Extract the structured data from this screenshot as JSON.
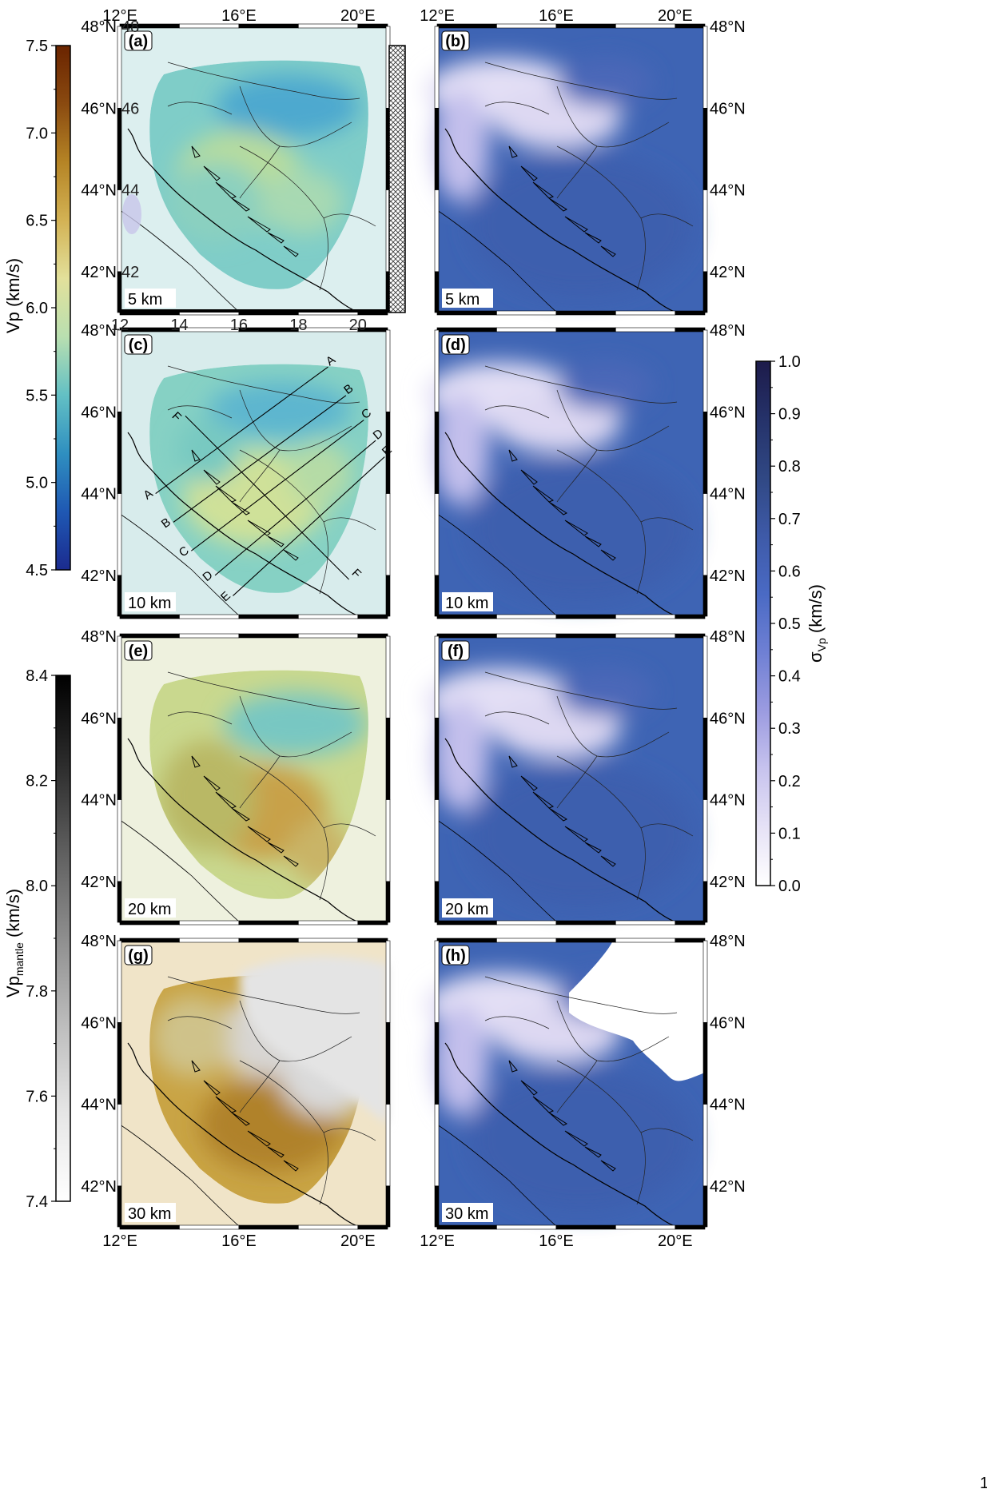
{
  "colors": {
    "vp_ramp": [
      "#1b2b8f",
      "#1f58b3",
      "#2f8fc0",
      "#63c0c4",
      "#b9dfb0",
      "#e2e09b",
      "#d3b254",
      "#b58425",
      "#8a4a10",
      "#6a2400"
    ],
    "sigma_ramp": [
      "#ffffff",
      "#e6e2f6",
      "#c7c3ee",
      "#9b9be0",
      "#6f80d4",
      "#4a6ac4",
      "#3e5aa8",
      "#304884",
      "#25326a",
      "#1d1b4a"
    ],
    "mantle_ramp": [
      "#ffffff",
      "#e6e6e6",
      "#bdbdbd",
      "#8e8e8e",
      "#5e5e5e",
      "#2b2b2b",
      "#000000"
    ],
    "coast": "#000000",
    "border": "#333333",
    "background_sigma": "#3e64b4"
  },
  "colorbars": {
    "vp": {
      "label": "Vp (km/s)",
      "ticks": [
        "7.5",
        "7.0",
        "6.5",
        "6.0",
        "5.5",
        "5.0",
        "4.5"
      ],
      "min": 4.5,
      "max": 7.5
    },
    "sigma": {
      "label_main": "σ",
      "label_sub": "Vp",
      "label_tail": " (km/s)",
      "ticks": [
        "1.0",
        "0.9",
        "0.8",
        "0.7",
        "0.6",
        "0.5",
        "0.4",
        "0.3",
        "0.2",
        "0.1",
        "0.0"
      ],
      "min": 0.0,
      "max": 1.0
    },
    "mantle": {
      "label_main": "Vp",
      "label_sub": "mantle",
      "label_tail": " (km/s)",
      "ticks": [
        "8.4",
        "8.2",
        "8.0",
        "7.8",
        "7.6",
        "7.4"
      ],
      "min": 7.4,
      "max": 8.5
    }
  },
  "axes": {
    "lon_labels": [
      "12°E",
      "16°E",
      "20°E"
    ],
    "lat_labels": [
      "48°N",
      "46°N",
      "44°N",
      "42°N"
    ],
    "inset_lon_ticks": [
      "12",
      "14",
      "16",
      "18",
      "20"
    ],
    "inset_lat_ticks": [
      "48",
      "46",
      "44",
      "42"
    ]
  },
  "panels": [
    {
      "tag": "(a)",
      "depth": "5 km",
      "kind": "vp"
    },
    {
      "tag": "(b)",
      "depth": "5 km",
      "kind": "sigma"
    },
    {
      "tag": "(c)",
      "depth": "10 km",
      "kind": "vp"
    },
    {
      "tag": "(d)",
      "depth": "10 km",
      "kind": "sigma"
    },
    {
      "tag": "(e)",
      "depth": "20 km",
      "kind": "vp"
    },
    {
      "tag": "(f)",
      "depth": "20 km",
      "kind": "sigma"
    },
    {
      "tag": "(g)",
      "depth": "30 km",
      "kind": "vp"
    },
    {
      "tag": "(h)",
      "depth": "30 km",
      "kind": "sigma"
    }
  ],
  "profiles": [
    "A",
    "B",
    "C",
    "D",
    "E",
    "F"
  ],
  "page_number": "1",
  "chart_data": {
    "type": "heatmap",
    "title": "",
    "xlabel": "",
    "ylabel": "",
    "x_range": [
      12,
      21
    ],
    "y_range": [
      41,
      48
    ],
    "depths_km": [
      5,
      10,
      20,
      30
    ],
    "vp_range_kms": [
      4.5,
      7.5
    ],
    "sigma_range_kms": [
      0.0,
      1.0
    ],
    "mantle_range_kms": [
      7.4,
      8.5
    ],
    "profile_lines": [
      {
        "name": "A",
        "from": [
          13.2,
          44.0
        ],
        "to": [
          19.0,
          47.1
        ]
      },
      {
        "name": "B",
        "from": [
          13.8,
          43.3
        ],
        "to": [
          19.6,
          46.4
        ]
      },
      {
        "name": "C",
        "from": [
          14.4,
          42.6
        ],
        "to": [
          20.2,
          45.8
        ]
      },
      {
        "name": "D",
        "from": [
          15.2,
          42.0
        ],
        "to": [
          20.6,
          45.3
        ]
      },
      {
        "name": "E",
        "from": [
          15.8,
          41.5
        ],
        "to": [
          20.9,
          44.9
        ]
      },
      {
        "name": "F",
        "from": [
          14.2,
          45.9
        ],
        "to": [
          19.7,
          41.9
        ]
      }
    ]
  }
}
